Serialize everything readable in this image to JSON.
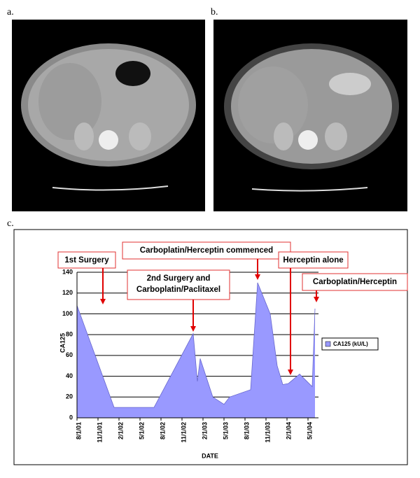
{
  "panels": [
    "a.",
    "b.",
    "c."
  ],
  "chart_data": {
    "type": "area",
    "x_label": "DATE",
    "y_label": "CA125",
    "series": [
      {
        "name": "CA125 (kU/L)",
        "color": "#9999ff",
        "x": [
          0,
          5.3,
          11,
          16.6,
          17.2,
          17.6,
          19.4,
          21,
          21.8,
          24.8,
          25.8,
          27.6,
          28.6,
          29.4,
          30.2,
          31.8,
          33.6,
          34
        ],
        "values": [
          108,
          10,
          10,
          81,
          35,
          57,
          20,
          13,
          20,
          27,
          130,
          100,
          50,
          32,
          33,
          42,
          30,
          105
        ]
      }
    ],
    "xlim": [
      0,
      34.5
    ],
    "xticks": [
      {
        "value": 0,
        "label": "8/1/01"
      },
      {
        "value": 3,
        "label": "11/1/01"
      },
      {
        "value": 6,
        "label": "2/1/02"
      },
      {
        "value": 9,
        "label": "5/1/02"
      },
      {
        "value": 12,
        "label": "8/1/02"
      },
      {
        "value": 15,
        "label": "11/1/02"
      },
      {
        "value": 18,
        "label": "2/1/03"
      },
      {
        "value": 21,
        "label": "5/1/03"
      },
      {
        "value": 24,
        "label": "8/1/03"
      },
      {
        "value": 27,
        "label": "11/1/03"
      },
      {
        "value": 30,
        "label": "2/1/04"
      },
      {
        "value": 33,
        "label": "5/1/04"
      }
    ],
    "ylim": [
      0,
      140
    ],
    "yticks": [
      0,
      20,
      40,
      60,
      80,
      100,
      120,
      140
    ],
    "grid": true,
    "legend": "right",
    "annotations": [
      {
        "text": [
          "1st Surgery"
        ]
      },
      {
        "text": [
          "Carboplatin/Herceptin commenced"
        ]
      },
      {
        "text": [
          "2nd Surgery and",
          "Carboplatin/Paclitaxel"
        ]
      },
      {
        "text": [
          "Herceptin alone"
        ]
      },
      {
        "text": [
          "Carboplatin/Herceptin"
        ]
      }
    ]
  }
}
